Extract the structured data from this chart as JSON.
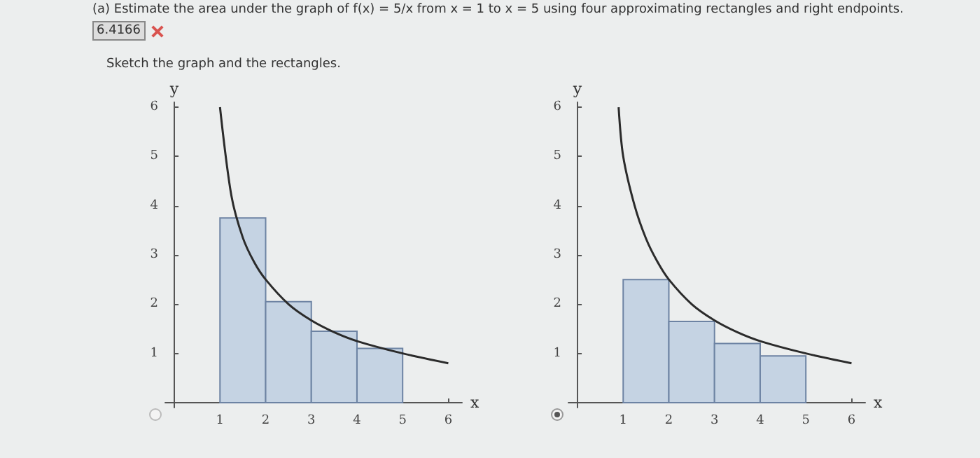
{
  "chart_data": [
    {
      "type": "histogram",
      "title": "(a) Estimate the area under the graph of f(x) = 5/x from x = 1 to x = 5 using four approximating rectangles and right endpoints.",
      "subtitle": "Sketch the graph and the rectangles.",
      "annotations": [
        "6.4166"
      ],
      "xlabel": "x",
      "ylabel": "y",
      "xlim": [
        -0.2,
        6.3
      ],
      "ylim": [
        -0.1,
        6.1
      ],
      "xticks": [
        1,
        2,
        3,
        4,
        5,
        6
      ],
      "yticks": [
        1,
        2,
        3,
        4,
        5,
        6
      ],
      "grid": false,
      "series": [
        {
          "type": "histogram",
          "bins": [
            1,
            2,
            3,
            4,
            5
          ],
          "values": [
            3.75,
            2.05,
            1.45,
            1.1
          ],
          "color": "#c5d3e3"
        },
        {
          "type": "line",
          "color": "#2b2b2b",
          "x": [
            1,
            1.25,
            1.5,
            1.75,
            2,
            2.5,
            3,
            3.5,
            4,
            5,
            6
          ],
          "values": [
            6,
            4.2,
            3.35,
            2.85,
            2.5,
            2,
            1.67,
            1.43,
            1.25,
            1,
            0.8
          ]
        }
      ]
    },
    {
      "type": "histogram",
      "xlabel": "x",
      "ylabel": "y",
      "xlim": [
        -0.2,
        6.3
      ],
      "ylim": [
        -0.1,
        6.1
      ],
      "xticks": [
        1,
        2,
        3,
        4,
        5,
        6
      ],
      "yticks": [
        1,
        2,
        3,
        4,
        5,
        6
      ],
      "grid": false,
      "series": [
        {
          "type": "histogram",
          "bins": [
            1,
            2,
            3,
            4,
            5
          ],
          "values": [
            2.5,
            1.65,
            1.2,
            0.95
          ],
          "color": "#c5d3e3"
        },
        {
          "type": "line",
          "color": "#2b2b2b",
          "x": [
            0.9,
            1,
            1.25,
            1.5,
            1.75,
            2,
            2.5,
            3,
            3.5,
            4,
            5,
            6
          ],
          "values": [
            6,
            5,
            4,
            3.33,
            2.86,
            2.5,
            2,
            1.67,
            1.43,
            1.25,
            1,
            0.8
          ]
        }
      ]
    }
  ]
}
